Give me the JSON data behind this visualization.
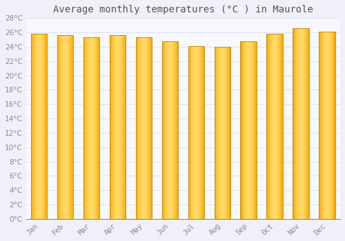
{
  "title": "Average monthly temperatures (°C ) in Maurole",
  "months": [
    "Jan",
    "Feb",
    "Mar",
    "Apr",
    "May",
    "Jun",
    "Jul",
    "Aug",
    "Sep",
    "Oct",
    "Nov",
    "Dec"
  ],
  "values": [
    25.8,
    25.6,
    25.3,
    25.6,
    25.3,
    24.8,
    24.1,
    24.0,
    24.8,
    25.8,
    26.6,
    26.1
  ],
  "bar_color_center": "#FFD966",
  "bar_color_edge": "#F5A800",
  "bar_border_color": "#B8860B",
  "background_color": "#F0F0F8",
  "plot_bg_color": "#F8F8FF",
  "grid_color": "#DDDDEE",
  "text_color": "#888899",
  "ylim": [
    0,
    28
  ],
  "ytick_step": 2,
  "title_fontsize": 10,
  "tick_fontsize": 7.5
}
